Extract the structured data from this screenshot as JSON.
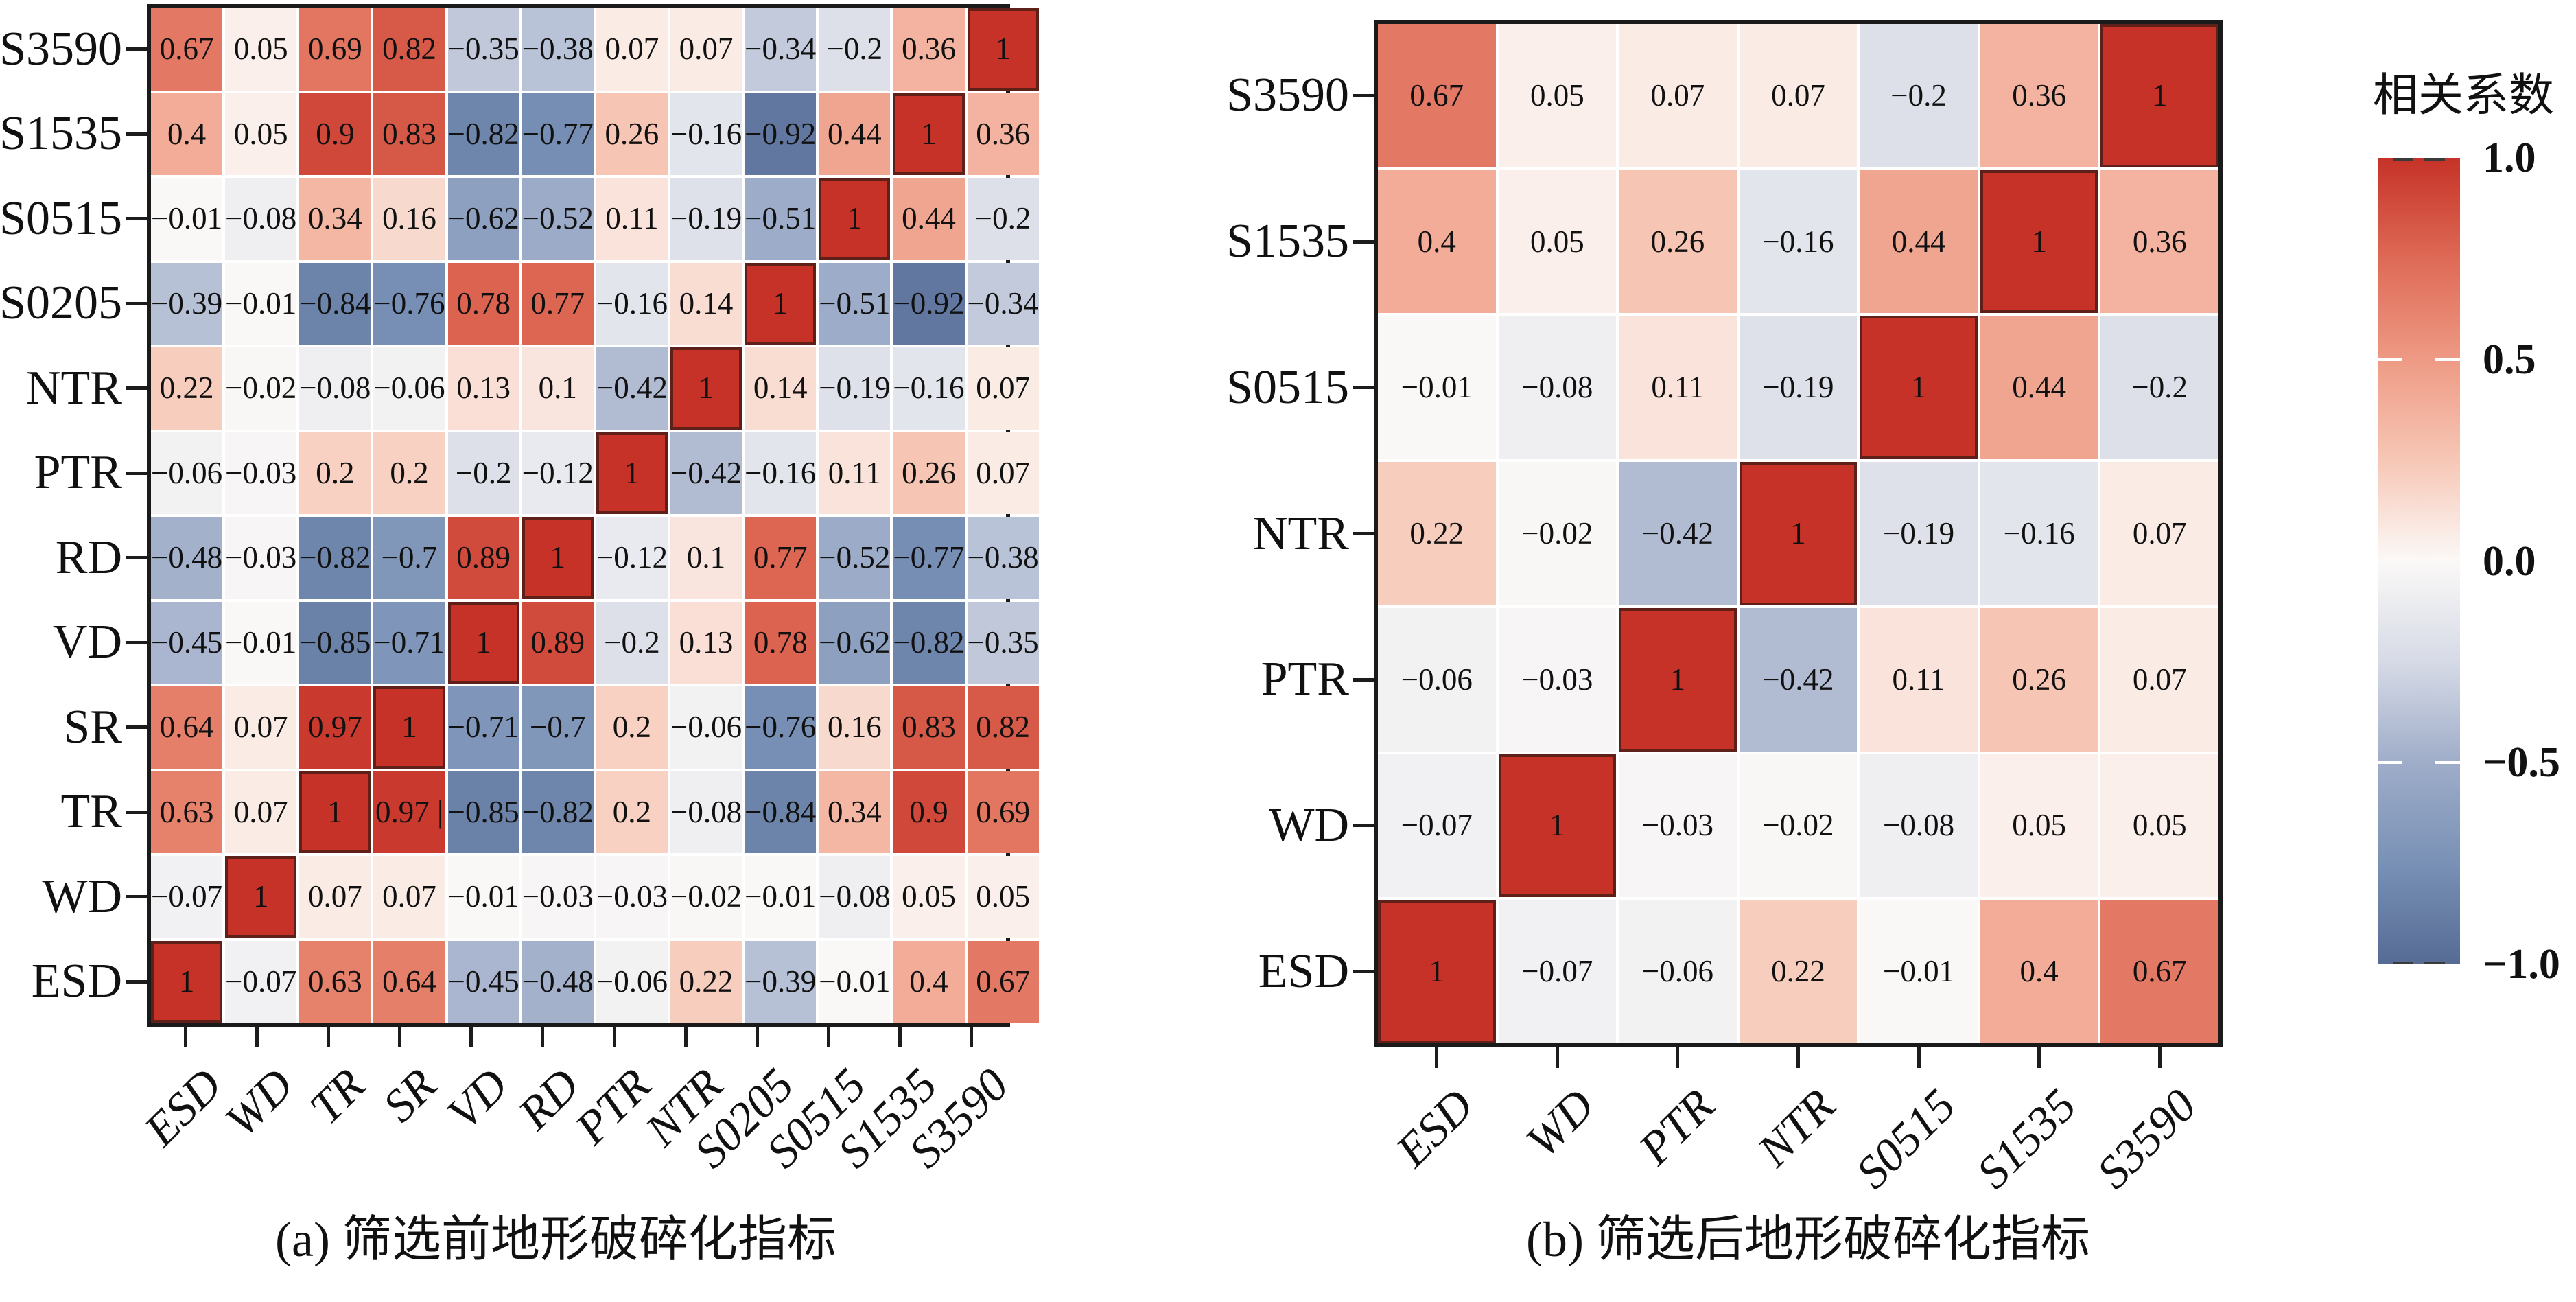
{
  "colorbar": {
    "title": "相关系数",
    "tick_labels": [
      "1.0",
      "0.5",
      "0.0",
      "−0.5",
      "−1.0"
    ],
    "gradient_stops": [
      "#c63228",
      "#de6a56",
      "#ee9a84",
      "#f7c7b6",
      "#fbf9f7",
      "#d6dae6",
      "#9fadc9",
      "#7991b6",
      "#566b94"
    ],
    "diagonal_border_color": "#5e2019",
    "axis_color": "#1a1a1a"
  },
  "panels": [
    {
      "caption": "(a) 筛选前地形破碎化指标",
      "row_labels": [
        "S3590",
        "S1535",
        "S0515",
        "S0205",
        "NTR",
        "PTR",
        "RD",
        "VD",
        "SR",
        "TR",
        "WD",
        "ESD"
      ],
      "col_labels": [
        "ESD",
        "WD",
        "TR",
        "SR",
        "VD",
        "RD",
        "PTR",
        "NTR",
        "S0205",
        "S0515",
        "S1535",
        "S3590"
      ],
      "cell_text": [
        [
          "0.67",
          "0.05",
          "0.69",
          "0.82",
          "−0.35",
          "−0.38",
          "0.07",
          "0.07",
          "−0.34",
          "−0.2",
          "0.36",
          "1"
        ],
        [
          "0.4",
          "0.05",
          "0.9",
          "0.83",
          "−0.82",
          "−0.77",
          "0.26",
          "−0.16",
          "−0.92",
          "0.44",
          "1",
          "0.36"
        ],
        [
          "−0.01",
          "−0.08",
          "0.34",
          "0.16",
          "−0.62",
          "−0.52",
          "0.11",
          "−0.19",
          "−0.51",
          "1",
          "0.44",
          "−0.2"
        ],
        [
          "−0.39",
          "−0.01",
          "−0.84",
          "−0.76",
          "0.78",
          "0.77",
          "−0.16",
          "0.14",
          "1",
          "−0.51",
          "−0.92",
          "−0.34"
        ],
        [
          "0.22",
          "−0.02",
          "−0.08",
          "−0.06",
          "0.13",
          "0.1",
          "−0.42",
          "1",
          "0.14",
          "−0.19",
          "−0.16",
          "0.07"
        ],
        [
          "−0.06",
          "−0.03",
          "0.2",
          "0.2",
          "−0.2",
          "−0.12",
          "1",
          "−0.42",
          "−0.16",
          "0.11",
          "0.26",
          "0.07"
        ],
        [
          "−0.48",
          "−0.03",
          "−0.82",
          "−0.7",
          "0.89",
          "1",
          "−0.12",
          "0.1",
          "0.77",
          "−0.52",
          "−0.77",
          "−0.38"
        ],
        [
          "−0.45",
          "−0.01",
          "−0.85",
          "−0.71",
          "1",
          "0.89",
          "−0.2",
          "0.13",
          "0.78",
          "−0.62",
          "−0.82",
          "−0.35"
        ],
        [
          "0.64",
          "0.07",
          "0.97",
          "1",
          "−0.71",
          "−0.7",
          "0.2",
          "−0.06",
          "−0.76",
          "0.16",
          "0.83",
          "0.82"
        ],
        [
          "0.63",
          "0.07",
          "1",
          "0.97 |",
          "−0.85",
          "−0.82",
          "0.2",
          "−0.08",
          "−0.84",
          "0.34",
          "0.9",
          "0.69"
        ],
        [
          "−0.07",
          "1",
          "0.07",
          "0.07",
          "−0.01",
          "−0.03",
          "−0.03",
          "−0.02",
          "−0.01",
          "−0.08",
          "0.05",
          "0.05"
        ],
        [
          "1",
          "−0.07",
          "0.63",
          "0.64",
          "−0.45",
          "−0.48",
          "−0.06",
          "0.22",
          "−0.39",
          "−0.01",
          "0.4",
          "0.67"
        ]
      ]
    },
    {
      "caption": "(b) 筛选后地形破碎化指标",
      "row_labels": [
        "S3590",
        "S1535",
        "S0515",
        "NTR",
        "PTR",
        "WD",
        "ESD"
      ],
      "col_labels": [
        "ESD",
        "WD",
        "PTR",
        "NTR",
        "S0515",
        "S1535",
        "S3590"
      ],
      "cell_text": [
        [
          "0.67",
          "0.05",
          "0.07",
          "0.07",
          "−0.2",
          "0.36",
          "1"
        ],
        [
          "0.4",
          "0.05",
          "0.26",
          "−0.16",
          "0.44",
          "1",
          "0.36"
        ],
        [
          "−0.01",
          "−0.08",
          "0.11",
          "−0.19",
          "1",
          "0.44",
          "−0.2"
        ],
        [
          "0.22",
          "−0.02",
          "−0.42",
          "1",
          "−0.19",
          "−0.16",
          "0.07"
        ],
        [
          "−0.06",
          "−0.03",
          "1",
          "−0.42",
          "0.11",
          "0.26",
          "0.07"
        ],
        [
          "−0.07",
          "1",
          "−0.03",
          "−0.02",
          "−0.08",
          "0.05",
          "0.05"
        ],
        [
          "1",
          "−0.07",
          "−0.06",
          "0.22",
          "−0.01",
          "0.4",
          "0.67"
        ]
      ]
    }
  ],
  "chart_data": [
    {
      "type": "heatmap",
      "title": "(a) 筛选前地形破碎化指标",
      "rows": [
        "S3590",
        "S1535",
        "S0515",
        "S0205",
        "NTR",
        "PTR",
        "RD",
        "VD",
        "SR",
        "TR",
        "WD",
        "ESD"
      ],
      "cols": [
        "ESD",
        "WD",
        "TR",
        "SR",
        "VD",
        "RD",
        "PTR",
        "NTR",
        "S0205",
        "S0515",
        "S1535",
        "S3590"
      ],
      "values": [
        [
          0.67,
          0.05,
          0.69,
          0.82,
          -0.35,
          -0.38,
          0.07,
          0.07,
          -0.34,
          -0.2,
          0.36,
          1
        ],
        [
          0.4,
          0.05,
          0.9,
          0.83,
          -0.82,
          -0.77,
          0.26,
          -0.16,
          -0.92,
          0.44,
          1,
          0.36
        ],
        [
          -0.01,
          -0.08,
          0.34,
          0.16,
          -0.62,
          -0.52,
          0.11,
          -0.19,
          -0.51,
          1,
          0.44,
          -0.2
        ],
        [
          -0.39,
          -0.01,
          -0.84,
          -0.76,
          0.78,
          0.77,
          -0.16,
          0.14,
          1,
          -0.51,
          -0.92,
          -0.34
        ],
        [
          0.22,
          -0.02,
          -0.08,
          -0.06,
          0.13,
          0.1,
          -0.42,
          1,
          0.14,
          -0.19,
          -0.16,
          0.07
        ],
        [
          -0.06,
          -0.03,
          0.2,
          0.2,
          -0.2,
          -0.12,
          1,
          -0.42,
          -0.16,
          0.11,
          0.26,
          0.07
        ],
        [
          -0.48,
          -0.03,
          -0.82,
          -0.7,
          0.89,
          1,
          -0.12,
          0.1,
          0.77,
          -0.52,
          -0.77,
          -0.38
        ],
        [
          -0.45,
          -0.01,
          -0.85,
          -0.71,
          1,
          0.89,
          -0.2,
          0.13,
          0.78,
          -0.62,
          -0.82,
          -0.35
        ],
        [
          0.64,
          0.07,
          0.97,
          1,
          -0.71,
          -0.7,
          0.2,
          -0.06,
          -0.76,
          0.16,
          0.83,
          0.82
        ],
        [
          0.63,
          0.07,
          1,
          0.97,
          -0.85,
          -0.82,
          0.2,
          -0.08,
          -0.84,
          0.34,
          0.9,
          0.69
        ],
        [
          -0.07,
          1,
          0.07,
          0.07,
          -0.01,
          -0.03,
          -0.03,
          -0.02,
          -0.01,
          -0.08,
          0.05,
          0.05
        ],
        [
          1,
          -0.07,
          0.63,
          0.64,
          -0.45,
          -0.48,
          -0.06,
          0.22,
          -0.39,
          -0.01,
          0.4,
          0.67
        ]
      ],
      "value_range": [
        -1,
        1
      ],
      "legend_title": "相关系数",
      "legend_ticks": [
        1.0,
        0.5,
        0.0,
        -0.5,
        -1.0
      ],
      "colormap": {
        "positive": "#c63228",
        "zero": "#fbf9f7",
        "negative": "#566b94"
      }
    },
    {
      "type": "heatmap",
      "title": "(b) 筛选后地形破碎化指标",
      "rows": [
        "S3590",
        "S1535",
        "S0515",
        "NTR",
        "PTR",
        "WD",
        "ESD"
      ],
      "cols": [
        "ESD",
        "WD",
        "PTR",
        "NTR",
        "S0515",
        "S1535",
        "S3590"
      ],
      "values": [
        [
          0.67,
          0.05,
          0.07,
          0.07,
          -0.2,
          0.36,
          1
        ],
        [
          0.4,
          0.05,
          0.26,
          -0.16,
          0.44,
          1,
          0.36
        ],
        [
          -0.01,
          -0.08,
          0.11,
          -0.19,
          1,
          0.44,
          -0.2
        ],
        [
          0.22,
          -0.02,
          -0.42,
          1,
          -0.19,
          -0.16,
          0.07
        ],
        [
          -0.06,
          -0.03,
          1,
          -0.42,
          0.11,
          0.26,
          0.07
        ],
        [
          -0.07,
          1,
          -0.03,
          -0.02,
          -0.08,
          0.05,
          0.05
        ],
        [
          1,
          -0.07,
          -0.06,
          0.22,
          -0.01,
          0.4,
          0.67
        ]
      ],
      "value_range": [
        -1,
        1
      ],
      "legend_title": "相关系数",
      "legend_ticks": [
        1.0,
        0.5,
        0.0,
        -0.5,
        -1.0
      ],
      "colormap": {
        "positive": "#c63228",
        "zero": "#fbf9f7",
        "negative": "#566b94"
      }
    }
  ]
}
